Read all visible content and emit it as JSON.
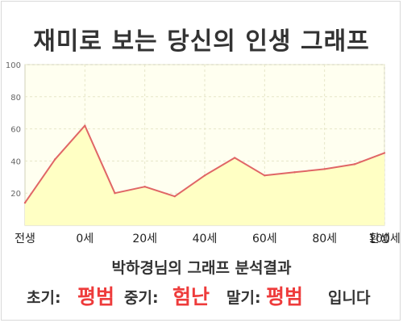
{
  "title": "재미로 보는 당신의 인생 그래프",
  "result": {
    "heading": "박하경님의 그래프 분석결과",
    "early_label": "초기:",
    "early_value": "평범",
    "mid_label": "중기:",
    "mid_value": "험난",
    "late_label": "말기:",
    "late_value": "평범",
    "suffix": "입니다"
  },
  "colors": {
    "line": "#e06666",
    "fill": "#ffffc4",
    "plot_bg": "#fffff0",
    "grid": "#e6e6c8",
    "highlight_text": "#ee3b3b"
  },
  "chart_data": {
    "type": "area",
    "x": [
      0,
      1,
      2,
      3,
      4,
      5,
      6,
      7,
      8,
      9,
      10,
      11,
      12
    ],
    "values": [
      14,
      41,
      62,
      20,
      24,
      18,
      31,
      42,
      31,
      33,
      35,
      38,
      45
    ],
    "x_tick_labels": [
      "전생",
      "0세",
      "20세",
      "40세",
      "60세",
      "80세",
      "100세",
      "환생"
    ],
    "y_ticks": [
      20,
      40,
      60,
      80,
      100
    ],
    "ylim": [
      0,
      100
    ],
    "grid": true
  }
}
